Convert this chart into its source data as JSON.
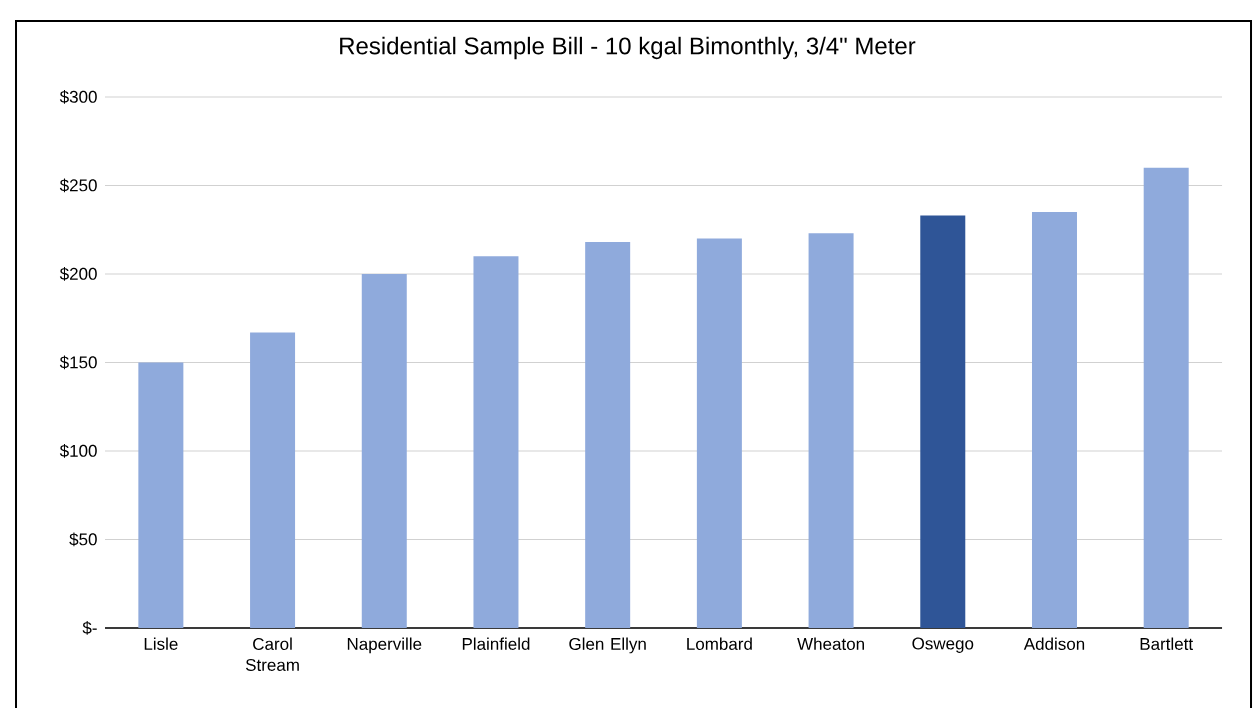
{
  "chart_data": {
    "type": "bar",
    "title": "Residential Sample Bill - 10 kgal Bimonthly, 3/4\" Meter",
    "categories": [
      "Lisle",
      "Carol Stream",
      "Naperville",
      "Plainfield",
      "Glen Ellyn",
      "Lombard",
      "Wheaton",
      "Oswego",
      "Addison",
      "Bartlett"
    ],
    "values": [
      150,
      167,
      200,
      210,
      218,
      220,
      223,
      233,
      235,
      260
    ],
    "colors": [
      "#8faadc",
      "#8faadc",
      "#8faadc",
      "#8faadc",
      "#8faadc",
      "#8faadc",
      "#8faadc",
      "#2f5597",
      "#8faadc",
      "#8faadc"
    ],
    "ylim": [
      0,
      300
    ],
    "yticks": [
      {
        "value": 0,
        "label": "$-"
      },
      {
        "value": 50,
        "label": "$50"
      },
      {
        "value": 100,
        "label": "$100"
      },
      {
        "value": 150,
        "label": "$150"
      },
      {
        "value": 200,
        "label": "$200"
      },
      {
        "value": 250,
        "label": "$250"
      },
      {
        "value": 300,
        "label": "$300"
      }
    ],
    "grid": "y"
  }
}
